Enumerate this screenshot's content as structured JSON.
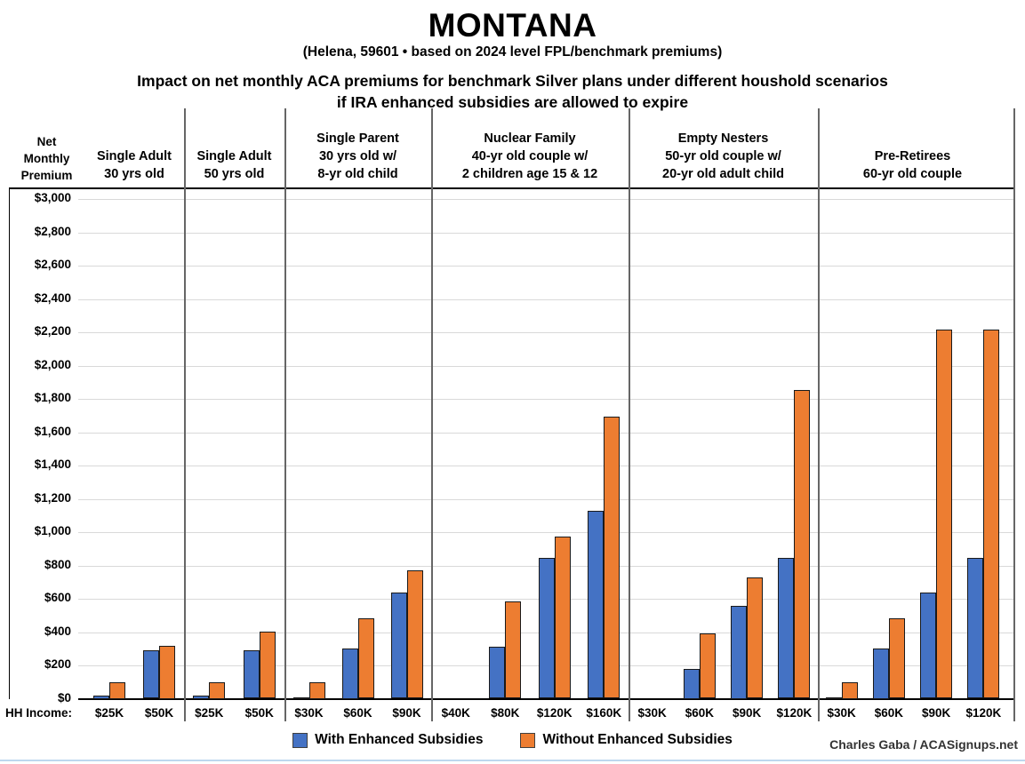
{
  "header": {
    "title": "MONTANA",
    "subtitle": "(Helena, 59601 • based on 2024 level FPL/benchmark premiums)",
    "chart_title_line1": "Impact on net monthly ACA premiums for benchmark Silver plans under different houshold scenarios",
    "chart_title_line2": "if IRA enhanced subsidies are allowed to expire"
  },
  "y_axis_header_lines": [
    "Net",
    "Monthly",
    "Premium"
  ],
  "hh_income_label": "HH Income:",
  "footer": {
    "credit": "Charles Gaba / ACASignups.net"
  },
  "colors": {
    "with_enhanced": "#4472C4",
    "without_enhanced": "#ED7D31",
    "gridline": "#d9d9d9",
    "divider": "#666666",
    "bottom_strip": "#bdd7ee"
  },
  "chart_data": {
    "type": "bar",
    "title": "Impact on net monthly ACA premiums for benchmark Silver plans under different houshold scenarios if IRA enhanced subsidies are allowed to expire",
    "ylabel": "Net Monthly Premium",
    "ylim": [
      0,
      3000
    ],
    "ytick_step": 200,
    "grid": true,
    "legend_position": "bottom",
    "series": [
      {
        "name": "With Enhanced Subsidies",
        "key": "with_enhanced",
        "color": "#4472C4"
      },
      {
        "name": "Without Enhanced Subsidies",
        "key": "without_enhanced",
        "color": "#ED7D31"
      }
    ],
    "groups": [
      {
        "label_lines": [
          "Single Adult",
          "30 yrs old"
        ],
        "incomes": [
          "$25K",
          "$50K"
        ],
        "with_enhanced": [
          20,
          290
        ],
        "without_enhanced": [
          100,
          320
        ]
      },
      {
        "label_lines": [
          "Single Adult",
          "50 yrs old"
        ],
        "incomes": [
          "$25K",
          "$50K"
        ],
        "with_enhanced": [
          20,
          290
        ],
        "without_enhanced": [
          100,
          405
        ]
      },
      {
        "label_lines": [
          "Single Parent",
          "30 yrs old w/",
          "8-yr old child"
        ],
        "incomes": [
          "$30K",
          "$60K",
          "$90K"
        ],
        "with_enhanced": [
          5,
          300,
          635
        ],
        "without_enhanced": [
          100,
          485,
          770
        ]
      },
      {
        "label_lines": [
          "Nuclear Family",
          "40-yr old couple w/",
          "2 children age 15 & 12"
        ],
        "incomes": [
          "$40K",
          "$80K",
          "$120K",
          "$160K"
        ],
        "with_enhanced": [
          0,
          310,
          845,
          1130
        ],
        "without_enhanced": [
          0,
          585,
          975,
          1695
        ]
      },
      {
        "label_lines": [
          "Empty Nesters",
          "50-yr old couple w/",
          "20-yr old adult child"
        ],
        "incomes": [
          "$30K",
          "$60K",
          "$90K",
          "$120K"
        ],
        "with_enhanced": [
          0,
          180,
          560,
          845
        ],
        "without_enhanced": [
          0,
          390,
          730,
          1855
        ]
      },
      {
        "label_lines": [
          "Pre-Retirees",
          "60-yr old couple"
        ],
        "incomes": [
          "$30K",
          "$60K",
          "$90K",
          "$120K"
        ],
        "with_enhanced": [
          5,
          300,
          635,
          845
        ],
        "without_enhanced": [
          100,
          485,
          2215,
          2215
        ]
      }
    ]
  }
}
